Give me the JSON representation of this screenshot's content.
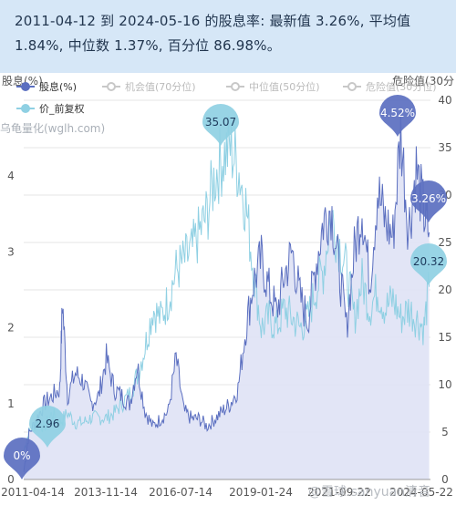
{
  "summary": {
    "line1": "2011-04-12 到 2024-05-16 的股息率:  最新值 3.26%,  平均值",
    "line2": "1.84%,  中位数 1.37%,  百分位 86.98%。"
  },
  "watermark": "乌龟量化(wglh.com)",
  "footer_watermark": "@雪球:sanyuan清音",
  "colors": {
    "dividend": "#5b6fc0",
    "dividend_fill": "#dfe2f5",
    "price": "#8fd0e3",
    "legend_inactive": "#c8c8c8",
    "grid": "#e6e6e6",
    "header_bg": "#d6e7f7"
  },
  "chart_data": {
    "type": "line",
    "left_axis_label": "股息(%)",
    "right_axis_label": "危险值(30分",
    "left_ticks": [
      "0",
      "1",
      "2",
      "3",
      "4"
    ],
    "right_ticks": [
      "0",
      "5",
      "10",
      "15",
      "20",
      "25",
      "30",
      "35",
      "40"
    ],
    "x_ticks": [
      "2011-04-14",
      "2013-11-14",
      "2016-07-14",
      "2019-01-24",
      "2021-09-22",
      "2024-05-22"
    ],
    "ylim_left": [
      0,
      5
    ],
    "ylim_right": [
      0,
      40
    ],
    "legend": [
      {
        "label": "股息(%)",
        "active": true,
        "marker": "dividend"
      },
      {
        "label": "机会值(70分位)",
        "active": false,
        "marker": "line"
      },
      {
        "label": "中位值(50分位)",
        "active": false,
        "marker": "line"
      },
      {
        "label": "危险值(30分位)",
        "active": false,
        "marker": "line"
      },
      {
        "label": "价_前复权",
        "active": true,
        "marker": "price"
      }
    ],
    "series": [
      {
        "name": "股息(%)",
        "axis": "left",
        "x": [
          "2011-04",
          "2011-06",
          "2011-09",
          "2011-12",
          "2012-03",
          "2012-06",
          "2012-07",
          "2012-09",
          "2012-12",
          "2013-03",
          "2013-06",
          "2013-09",
          "2013-12",
          "2014-03",
          "2014-06",
          "2014-09",
          "2014-12",
          "2015-03",
          "2015-06",
          "2015-09",
          "2015-12",
          "2016-03",
          "2016-06",
          "2016-09",
          "2016-12",
          "2017-03",
          "2017-06",
          "2017-09",
          "2017-12",
          "2018-03",
          "2018-06",
          "2018-09",
          "2018-12",
          "2019-03",
          "2019-06",
          "2019-09",
          "2019-12",
          "2020-03",
          "2020-06",
          "2020-09",
          "2020-12",
          "2021-03",
          "2021-06",
          "2021-09",
          "2021-12",
          "2022-03",
          "2022-06",
          "2022-09",
          "2022-12",
          "2023-03",
          "2023-06",
          "2023-09",
          "2023-12",
          "2024-03",
          "2024-05"
        ],
        "values": [
          0.1,
          0.6,
          0.8,
          1.0,
          1.1,
          1.2,
          2.35,
          1.1,
          1.4,
          1.3,
          1.0,
          1.1,
          1.6,
          1.2,
          1.1,
          1.0,
          1.5,
          0.9,
          0.7,
          0.8,
          0.9,
          1.6,
          0.9,
          0.8,
          0.8,
          0.7,
          0.8,
          0.9,
          1.0,
          1.2,
          2.0,
          2.6,
          2.9,
          2.5,
          2.2,
          2.7,
          3.0,
          2.4,
          2.1,
          2.8,
          3.4,
          3.6,
          2.8,
          2.0,
          3.0,
          3.6,
          2.6,
          3.8,
          3.4,
          3.2,
          4.6,
          3.3,
          4.1,
          3.5,
          3.26
        ]
      },
      {
        "name": "价_前复权",
        "axis": "right",
        "x": [
          "2011-04",
          "2011-06",
          "2011-09",
          "2011-12",
          "2012-03",
          "2012-06",
          "2012-09",
          "2012-12",
          "2013-03",
          "2013-06",
          "2013-09",
          "2013-12",
          "2014-03",
          "2014-06",
          "2014-09",
          "2014-12",
          "2015-03",
          "2015-06",
          "2015-09",
          "2015-12",
          "2016-03",
          "2016-06",
          "2016-09",
          "2016-12",
          "2017-03",
          "2017-06",
          "2017-09",
          "2017-12",
          "2018-03",
          "2018-06",
          "2018-09",
          "2018-12",
          "2019-03",
          "2019-06",
          "2019-09",
          "2019-12",
          "2020-03",
          "2020-06",
          "2020-09",
          "2020-12",
          "2021-03",
          "2021-06",
          "2021-09",
          "2021-12",
          "2022-03",
          "2022-06",
          "2022-09",
          "2022-12",
          "2023-03",
          "2023-06",
          "2023-09",
          "2023-12",
          "2024-03",
          "2024-05"
        ],
        "values": [
          2.96,
          5,
          6,
          5.5,
          7,
          6,
          7,
          6,
          6,
          6.5,
          6.5,
          6.5,
          7,
          8,
          9,
          11,
          14,
          18,
          17,
          19,
          22,
          23,
          24,
          26,
          28,
          32,
          34,
          35.07,
          33,
          29,
          22,
          16,
          17,
          16,
          18,
          17,
          16,
          17,
          20,
          22,
          28,
          25,
          22,
          17,
          21,
          18,
          20,
          18,
          19,
          17,
          18,
          17,
          16,
          20.32
        ]
      }
    ],
    "annotations": [
      {
        "series": "股息(%)",
        "label": "0%",
        "kind": "min"
      },
      {
        "series": "股息(%)",
        "label": "4.52%",
        "kind": "max"
      },
      {
        "series": "股息(%)",
        "label": "3.26%",
        "kind": "latest"
      },
      {
        "series": "价_前复权",
        "label": "2.96",
        "kind": "min"
      },
      {
        "series": "价_前复权",
        "label": "35.07",
        "kind": "max"
      },
      {
        "series": "价_前复权",
        "label": "20.32",
        "kind": "latest"
      }
    ]
  }
}
